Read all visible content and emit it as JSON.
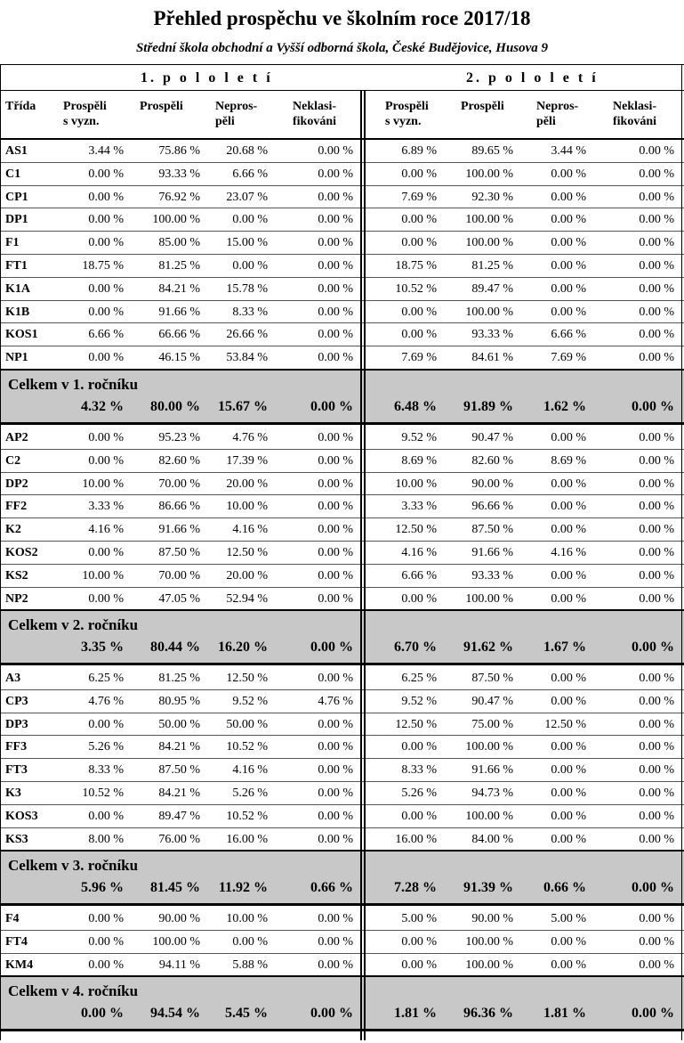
{
  "title": "Přehled prospěchu ve školním roce 2017/18",
  "subtitle": "Střední škola obchodní a Vyšší odborná škola, České Budějovice, Husova 9",
  "semesters": [
    "1. p o l o l e t í",
    "2. p o l o l e t í"
  ],
  "headers": {
    "class": "Třída",
    "cols": [
      [
        "Prospěli",
        "s vyzn."
      ],
      [
        "Prospěli"
      ],
      [
        "Nepros-",
        "pěli"
      ],
      [
        "Neklasi-",
        "fikováni"
      ]
    ]
  },
  "grades": [
    {
      "rows": [
        {
          "c": "AS1",
          "v": [
            "3.44 %",
            "75.86 %",
            "20.68 %",
            "0.00 %",
            "6.89 %",
            "89.65 %",
            "3.44 %",
            "0.00 %"
          ]
        },
        {
          "c": "C1",
          "v": [
            "0.00 %",
            "93.33 %",
            "6.66 %",
            "0.00 %",
            "0.00 %",
            "100.00 %",
            "0.00 %",
            "0.00 %"
          ]
        },
        {
          "c": "CP1",
          "v": [
            "0.00 %",
            "76.92 %",
            "23.07 %",
            "0.00 %",
            "7.69 %",
            "92.30 %",
            "0.00 %",
            "0.00 %"
          ]
        },
        {
          "c": "DP1",
          "v": [
            "0.00 %",
            "100.00 %",
            "0.00 %",
            "0.00 %",
            "0.00 %",
            "100.00 %",
            "0.00 %",
            "0.00 %"
          ]
        },
        {
          "c": "F1",
          "v": [
            "0.00 %",
            "85.00 %",
            "15.00 %",
            "0.00 %",
            "0.00 %",
            "100.00 %",
            "0.00 %",
            "0.00 %"
          ]
        },
        {
          "c": "FT1",
          "v": [
            "18.75 %",
            "81.25 %",
            "0.00 %",
            "0.00 %",
            "18.75 %",
            "81.25 %",
            "0.00 %",
            "0.00 %"
          ]
        },
        {
          "c": "K1A",
          "v": [
            "0.00 %",
            "84.21 %",
            "15.78 %",
            "0.00 %",
            "10.52 %",
            "89.47 %",
            "0.00 %",
            "0.00 %"
          ]
        },
        {
          "c": "K1B",
          "v": [
            "0.00 %",
            "91.66 %",
            "8.33 %",
            "0.00 %",
            "0.00 %",
            "100.00 %",
            "0.00 %",
            "0.00 %"
          ]
        },
        {
          "c": "KOS1",
          "v": [
            "6.66 %",
            "66.66 %",
            "26.66 %",
            "0.00 %",
            "0.00 %",
            "93.33 %",
            "6.66 %",
            "0.00 %"
          ]
        },
        {
          "c": "NP1",
          "v": [
            "0.00 %",
            "46.15 %",
            "53.84 %",
            "0.00 %",
            "7.69 %",
            "84.61 %",
            "7.69 %",
            "0.00 %"
          ]
        }
      ],
      "total_label": "Celkem v 1. ročníku",
      "total": [
        "4.32 %",
        "80.00 %",
        "15.67 %",
        "0.00 %",
        "6.48 %",
        "91.89 %",
        "1.62 %",
        "0.00 %"
      ]
    },
    {
      "rows": [
        {
          "c": "AP2",
          "v": [
            "0.00 %",
            "95.23 %",
            "4.76 %",
            "0.00 %",
            "9.52 %",
            "90.47 %",
            "0.00 %",
            "0.00 %"
          ]
        },
        {
          "c": "C2",
          "v": [
            "0.00 %",
            "82.60 %",
            "17.39 %",
            "0.00 %",
            "8.69 %",
            "82.60 %",
            "8.69 %",
            "0.00 %"
          ]
        },
        {
          "c": "DP2",
          "v": [
            "10.00 %",
            "70.00 %",
            "20.00 %",
            "0.00 %",
            "10.00 %",
            "90.00 %",
            "0.00 %",
            "0.00 %"
          ]
        },
        {
          "c": "FF2",
          "v": [
            "3.33 %",
            "86.66 %",
            "10.00 %",
            "0.00 %",
            "3.33 %",
            "96.66 %",
            "0.00 %",
            "0.00 %"
          ]
        },
        {
          "c": "K2",
          "v": [
            "4.16 %",
            "91.66 %",
            "4.16 %",
            "0.00 %",
            "12.50 %",
            "87.50 %",
            "0.00 %",
            "0.00 %"
          ]
        },
        {
          "c": "KOS2",
          "v": [
            "0.00 %",
            "87.50 %",
            "12.50 %",
            "0.00 %",
            "4.16 %",
            "91.66 %",
            "4.16 %",
            "0.00 %"
          ]
        },
        {
          "c": "KS2",
          "v": [
            "10.00 %",
            "70.00 %",
            "20.00 %",
            "0.00 %",
            "6.66 %",
            "93.33 %",
            "0.00 %",
            "0.00 %"
          ]
        },
        {
          "c": "NP2",
          "v": [
            "0.00 %",
            "47.05 %",
            "52.94 %",
            "0.00 %",
            "0.00 %",
            "100.00 %",
            "0.00 %",
            "0.00 %"
          ]
        }
      ],
      "total_label": "Celkem v 2. ročníku",
      "total": [
        "3.35 %",
        "80.44 %",
        "16.20 %",
        "0.00 %",
        "6.70 %",
        "91.62 %",
        "1.67 %",
        "0.00 %"
      ]
    },
    {
      "rows": [
        {
          "c": "A3",
          "v": [
            "6.25 %",
            "81.25 %",
            "12.50 %",
            "0.00 %",
            "6.25 %",
            "87.50 %",
            "0.00 %",
            "0.00 %"
          ]
        },
        {
          "c": "CP3",
          "v": [
            "4.76 %",
            "80.95 %",
            "9.52 %",
            "4.76 %",
            "9.52 %",
            "90.47 %",
            "0.00 %",
            "0.00 %"
          ]
        },
        {
          "c": "DP3",
          "v": [
            "0.00 %",
            "50.00 %",
            "50.00 %",
            "0.00 %",
            "12.50 %",
            "75.00 %",
            "12.50 %",
            "0.00 %"
          ]
        },
        {
          "c": "FF3",
          "v": [
            "5.26 %",
            "84.21 %",
            "10.52 %",
            "0.00 %",
            "0.00 %",
            "100.00 %",
            "0.00 %",
            "0.00 %"
          ]
        },
        {
          "c": "FT3",
          "v": [
            "8.33 %",
            "87.50 %",
            "4.16 %",
            "0.00 %",
            "8.33 %",
            "91.66 %",
            "0.00 %",
            "0.00 %"
          ]
        },
        {
          "c": "K3",
          "v": [
            "10.52 %",
            "84.21 %",
            "5.26 %",
            "0.00 %",
            "5.26 %",
            "94.73 %",
            "0.00 %",
            "0.00 %"
          ]
        },
        {
          "c": "KOS3",
          "v": [
            "0.00 %",
            "89.47 %",
            "10.52 %",
            "0.00 %",
            "0.00 %",
            "100.00 %",
            "0.00 %",
            "0.00 %"
          ]
        },
        {
          "c": "KS3",
          "v": [
            "8.00 %",
            "76.00 %",
            "16.00 %",
            "0.00 %",
            "16.00 %",
            "84.00 %",
            "0.00 %",
            "0.00 %"
          ]
        }
      ],
      "total_label": "Celkem v 3. ročníku",
      "total": [
        "5.96 %",
        "81.45 %",
        "11.92 %",
        "0.66 %",
        "7.28 %",
        "91.39 %",
        "0.66 %",
        "0.00 %"
      ]
    },
    {
      "rows": [
        {
          "c": "F4",
          "v": [
            "0.00 %",
            "90.00 %",
            "10.00 %",
            "0.00 %",
            "5.00 %",
            "90.00 %",
            "5.00 %",
            "0.00 %"
          ]
        },
        {
          "c": "FT4",
          "v": [
            "0.00 %",
            "100.00 %",
            "0.00 %",
            "0.00 %",
            "0.00 %",
            "100.00 %",
            "0.00 %",
            "0.00 %"
          ]
        },
        {
          "c": "KM4",
          "v": [
            "0.00 %",
            "94.11 %",
            "5.88 %",
            "0.00 %",
            "0.00 %",
            "100.00 %",
            "0.00 %",
            "0.00 %"
          ]
        }
      ],
      "total_label": "Celkem v 4. ročníku",
      "total": [
        "0.00 %",
        "94.54 %",
        "5.45 %",
        "0.00 %",
        "1.81 %",
        "96.36 %",
        "1.81 %",
        "0.00 %"
      ]
    }
  ]
}
